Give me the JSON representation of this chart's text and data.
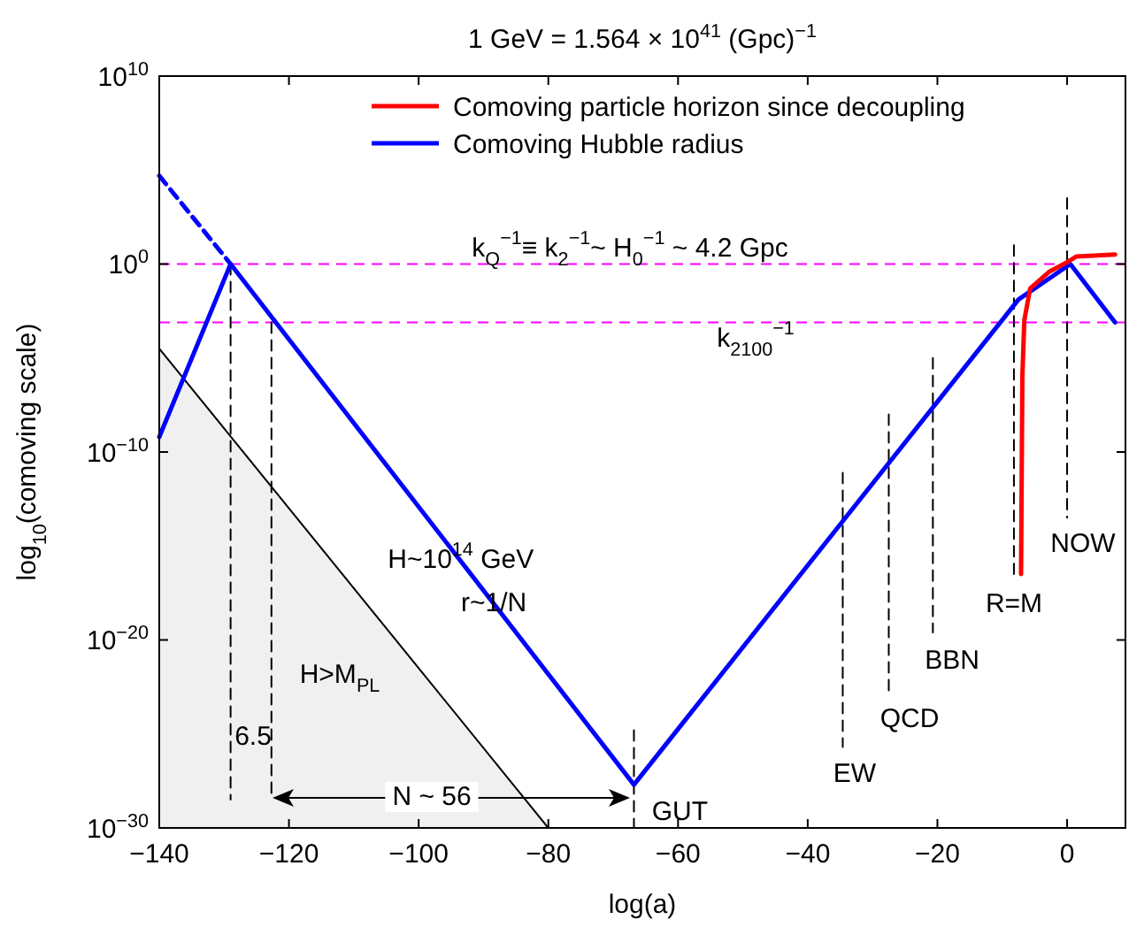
{
  "chart_data": {
    "type": "line",
    "title": "1 GeV = 1.564 × 10$^{41}$ (Gpc)$^{−1}$",
    "xlabel": "log(a)",
    "ylabel": "log$_{10}$(comoving scale)",
    "xlim": [
      -140,
      9
    ],
    "ylim": [
      1e-30,
      10000000000.0
    ],
    "log": true,
    "xticks": [
      -140,
      -120,
      -100,
      -80,
      -60,
      -40,
      -20,
      0
    ],
    "yticks": [
      {
        "value": 1e-30,
        "label": "10$^{−30}$"
      },
      {
        "value": 1e-20,
        "label": "10$^{−20}$"
      },
      {
        "value": 1e-10,
        "label": "10$^{−10}$"
      },
      {
        "value": 1,
        "label": "10$^{0}$"
      },
      {
        "value": 10000000000.0,
        "label": "10$^{10}$"
      }
    ],
    "legend": "top right",
    "series": [
      {
        "type": "area",
        "color": "#f0f0f0",
        "x": [
          -140,
          -80
        ],
        "values": [
          3.2e-05,
          1e-30
        ]
      },
      {
        "color": "#000000",
        "line_style": "dashed",
        "x": [
          -129,
          -129
        ],
        "values": [
          1,
          3.2e-29
        ]
      },
      {
        "color": "#000000",
        "line_style": "dashed",
        "x": [
          -122.7,
          -122.7
        ],
        "values": [
          0.00079,
          3.2e-29
        ]
      },
      {
        "color": "#000000",
        "line_style": "dashed",
        "x": [
          -66.8,
          -66.8
        ],
        "values": [
          1.6e-25,
          1e-30
        ]
      },
      {
        "color": "#000000",
        "line_style": "dashed",
        "x": [
          -34.6,
          -34.6
        ],
        "values": [
          7.9e-12,
          2e-26
        ]
      },
      {
        "color": "#000000",
        "line_style": "dashed",
        "x": [
          -27.5,
          -27.5
        ],
        "values": [
          1e-08,
          1.6e-23
        ]
      },
      {
        "color": "#000000",
        "line_style": "dashed",
        "x": [
          -20.7,
          -20.7
        ],
        "values": [
          1e-05,
          2.5e-20
        ]
      },
      {
        "color": "#000000",
        "line_style": "dashed",
        "x": [
          -8.2,
          -8.2
        ],
        "values": [
          10,
          3.2e-17
        ]
      },
      {
        "color": "#000000",
        "line_style": "dashed",
        "x": [
          0,
          0
        ],
        "values": [
          3200,
          3.2e-14
        ]
      },
      {
        "color": "#0000ff",
        "line_style": "dashed",
        "x": [
          -140,
          -129
        ],
        "values": [
          50000.0,
          1
        ]
      },
      {
        "name": "Comoving Hubble radius",
        "color": "#0000ff",
        "x": [
          -140,
          -129,
          -66.8,
          -7.5,
          0.5,
          7.4
        ],
        "values": [
          6.3e-10,
          1,
          2e-28,
          0.013,
          1,
          0.00079
        ]
      },
      {
        "name": "Comoving particle horizon since decoupling",
        "color": "#ff0000",
        "x": [
          -7.1,
          -6.9,
          -6.6,
          -5.7,
          -2.7,
          0,
          1.4,
          7.4
        ],
        "values": [
          3.2e-17,
          1e-06,
          0.001,
          0.05,
          0.4,
          1.26,
          2.5,
          3.2
        ]
      }
    ],
    "ref_lines": [
      {
        "axis": "y",
        "value": 1,
        "color": "#ff00ff",
        "line_style": "dashed",
        "label": "k$_{Q}$$^{−1}$≡ k$_{2}$$^{−1}$~ H$_{0}$$^{−1}$ ~ 4.2 Gpc"
      },
      {
        "axis": "y",
        "value": 0.00079,
        "color": "#ff00ff",
        "line_style": "dashed",
        "label": "k$_{2100}$$^{−1}$"
      }
    ],
    "annotations": [
      {
        "text": "H~10$^{14}$ GeV",
        "x": -93.5,
        "y": 1.6e-16
      },
      {
        "text": "r~1/N",
        "x": -88.4,
        "y": 7.9e-19
      },
      "H>M$_{PL}$",
      "6.5",
      "N ~ 56",
      {
        "text": "GUT",
        "x": -66.8,
        "y": 2e-28
      },
      "EW",
      "QCD",
      "BBN",
      "R=M",
      "NOW"
    ]
  }
}
